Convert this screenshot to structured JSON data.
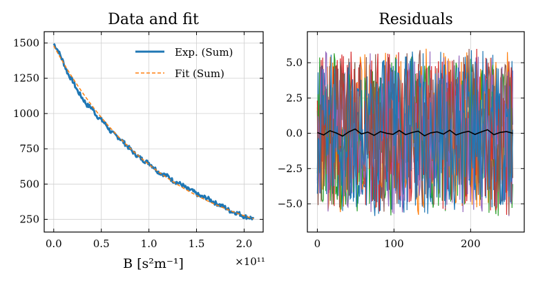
{
  "chart_data": [
    {
      "type": "line",
      "title": "Data and fit",
      "xlabel": "B [s²m⁻¹]",
      "ylabel": "",
      "x_offset_label": "×10¹¹",
      "xlim": [
        -0.1,
        2.2
      ],
      "ylim": [
        160,
        1580
      ],
      "xticks": [
        0.0,
        0.5,
        1.0,
        1.5,
        2.0
      ],
      "xtick_labels": [
        "0.0",
        "0.5",
        "1.0",
        "1.5",
        "2.0"
      ],
      "yticks": [
        250,
        500,
        750,
        1000,
        1250,
        1500
      ],
      "ytick_labels": [
        "250",
        "500",
        "750",
        "1000",
        "1250",
        "1500"
      ],
      "grid": true,
      "legend": "top-right",
      "series": [
        {
          "name": "Exp. (Sum)",
          "color": "#1f77b4",
          "style": "solid",
          "x": [
            0.0,
            0.05,
            0.1,
            0.15,
            0.2,
            0.25,
            0.3,
            0.35,
            0.4,
            0.45,
            0.5,
            0.55,
            0.6,
            0.65,
            0.7,
            0.75,
            0.8,
            0.85,
            0.9,
            0.95,
            1.0,
            1.05,
            1.1,
            1.15,
            1.2,
            1.25,
            1.3,
            1.35,
            1.4,
            1.45,
            1.5,
            1.55,
            1.6,
            1.65,
            1.7,
            1.75,
            1.8,
            1.85,
            1.9,
            1.95,
            2.0,
            2.05,
            2.1
          ],
          "values": [
            1495,
            1440,
            1365,
            1280,
            1230,
            1160,
            1110,
            1060,
            1040,
            985,
            955,
            920,
            870,
            845,
            820,
            785,
            750,
            715,
            690,
            665,
            650,
            620,
            585,
            570,
            555,
            525,
            510,
            495,
            465,
            455,
            430,
            410,
            405,
            385,
            365,
            350,
            335,
            310,
            300,
            290,
            270,
            265,
            255
          ]
        },
        {
          "name": "Fit (Sum)",
          "color": "#ff7f0e",
          "style": "dashed",
          "amplitude": 1480,
          "decay_rate": 0.84,
          "x_start": 0.0,
          "x_end": 2.1
        }
      ]
    },
    {
      "type": "line",
      "title": "Residuals",
      "xlabel": "",
      "ylabel": "",
      "xlim": [
        -13,
        270
      ],
      "ylim": [
        -7.0,
        7.2
      ],
      "xticks": [
        0,
        100,
        200
      ],
      "xtick_labels": [
        "0",
        "100",
        "200"
      ],
      "yticks": [
        -5.0,
        -2.5,
        0.0,
        2.5,
        5.0
      ],
      "ytick_labels": [
        "−5.0",
        "−2.5",
        "0.0",
        "2.5",
        "5.0"
      ],
      "grid": true,
      "noise_series": {
        "count": 7,
        "colors": [
          "#1f77b4",
          "#ff7f0e",
          "#2ca02c",
          "#d62728",
          "#9467bd",
          "#8c564b",
          "#1f77b4"
        ],
        "n_points": 256,
        "amplitude": 6.5
      },
      "mean_series": {
        "name": "mean residual",
        "color": "#000000",
        "values": [
          0.05,
          -0.12,
          0.18,
          0.02,
          -0.2,
          0.1,
          0.3,
          -0.05,
          0.08,
          -0.15,
          0.12,
          0.0,
          -0.08,
          0.2,
          -0.1,
          0.05,
          0.15,
          -0.18,
          0.03,
          0.1,
          -0.06,
          0.22,
          -0.12,
          0.04,
          0.14,
          -0.08,
          0.1,
          0.25,
          -0.1,
          0.06,
          0.12,
          0.0
        ]
      }
    }
  ]
}
